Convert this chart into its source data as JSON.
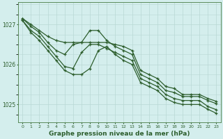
{
  "background_color": "#d4eeed",
  "grid_color": "#b8d8d4",
  "line_color": "#2d5e2d",
  "marker_style": "+",
  "marker_size": 3.5,
  "line_width": 0.9,
  "xlabel": "Graphe pression niveau de la mer (hPa)",
  "xlabel_fontsize": 6.5,
  "xlabel_bold": true,
  "ytick_labels": [
    "1025",
    "1026",
    "1027"
  ],
  "ylim": [
    1024.55,
    1027.55
  ],
  "xlim": [
    -0.5,
    23.5
  ],
  "series": [
    [
      1027.15,
      1027.0,
      1026.85,
      1026.7,
      1026.6,
      1026.55,
      1026.55,
      1026.55,
      1026.55,
      1026.55,
      1026.55,
      1026.5,
      1026.45,
      1026.35,
      1025.85,
      1025.75,
      1025.65,
      1025.45,
      1025.4,
      1025.25,
      1025.25,
      1025.25,
      1025.15,
      1025.08
    ],
    [
      1027.15,
      1026.95,
      1026.8,
      1026.55,
      1026.35,
      1026.25,
      1026.5,
      1026.55,
      1026.85,
      1026.85,
      1026.6,
      1026.45,
      1026.35,
      1026.25,
      1025.75,
      1025.65,
      1025.55,
      1025.35,
      1025.3,
      1025.2,
      1025.2,
      1025.2,
      1025.1,
      1025.02
    ],
    [
      1027.1,
      1026.85,
      1026.7,
      1026.45,
      1026.2,
      1025.95,
      1025.9,
      1026.3,
      1026.5,
      1026.5,
      1026.4,
      1026.3,
      1026.2,
      1026.1,
      1025.65,
      1025.55,
      1025.45,
      1025.25,
      1025.15,
      1025.1,
      1025.1,
      1025.1,
      1024.95,
      1024.87
    ],
    [
      1027.1,
      1026.8,
      1026.6,
      1026.35,
      1026.1,
      1025.85,
      1025.75,
      1025.75,
      1025.9,
      1026.35,
      1026.45,
      1026.25,
      1026.1,
      1026.0,
      1025.55,
      1025.45,
      1025.35,
      1025.15,
      1025.05,
      1025.0,
      1025.0,
      1025.0,
      1024.88,
      1024.78
    ]
  ]
}
